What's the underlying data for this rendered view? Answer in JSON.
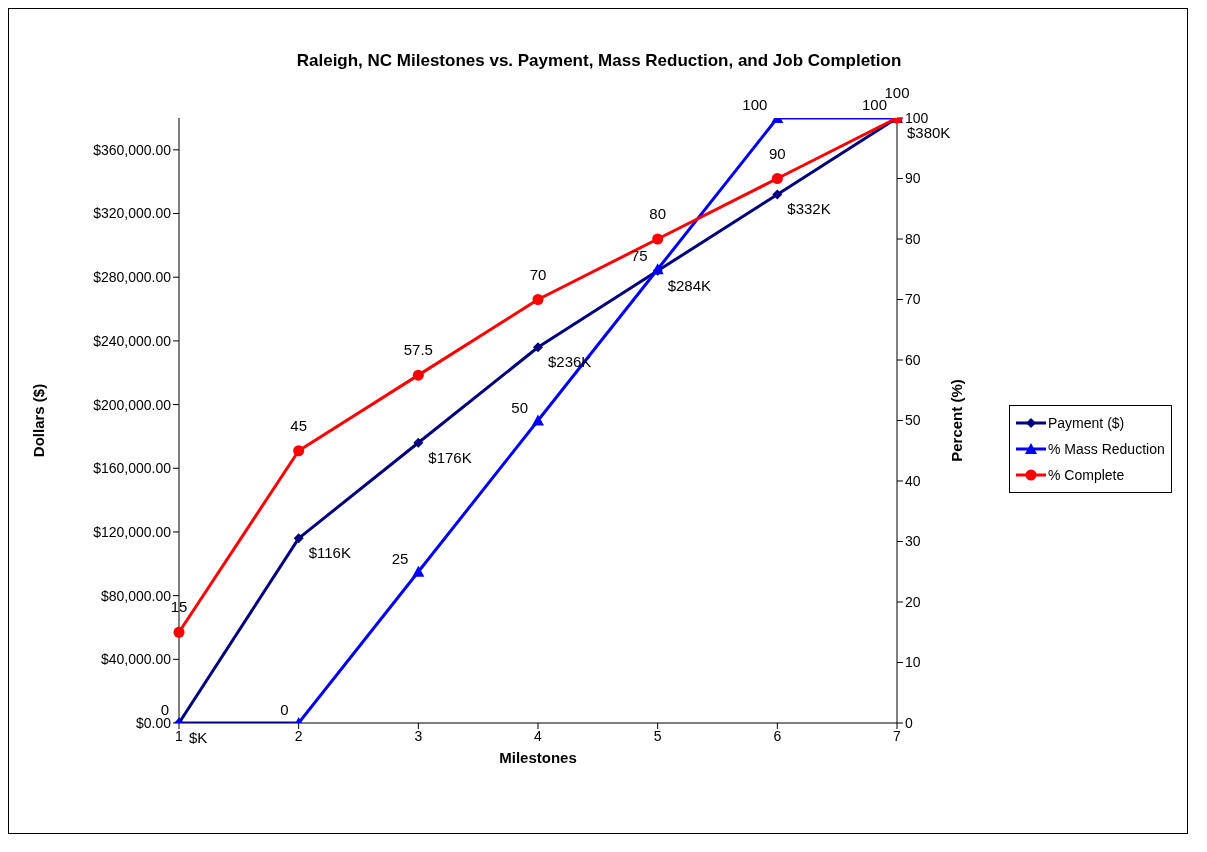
{
  "chart_data": {
    "type": "line",
    "title": "Raleigh, NC Milestones vs. Payment, Mass Reduction, and Job Completion",
    "xlabel": "Milestones",
    "ylabel": "Dollars ($)",
    "y2label": "Percent (%)",
    "categories": [
      "1",
      "2",
      "3",
      "4",
      "5",
      "6",
      "7"
    ],
    "series": [
      {
        "name": "Payment ($)",
        "color": "#000080",
        "marker": "diamond",
        "values": [
          0,
          116000,
          176000,
          236000,
          284000,
          332000,
          380000
        ],
        "value_labels": [
          "$K",
          "$116K",
          "$176K",
          "$236K",
          "$284K",
          "$332K",
          "$380K"
        ]
      },
      {
        "name": "% Mass Reduction",
        "color": "#0000ff",
        "marker": "triangle",
        "axis": "y2",
        "values": [
          0,
          0,
          25,
          50,
          75,
          100,
          100
        ],
        "value_labels": [
          "0",
          "0",
          "25",
          "50",
          "75",
          "100",
          "100"
        ]
      },
      {
        "name": "% Complete",
        "color": "#ff0000",
        "marker": "circle",
        "axis": "y2",
        "values": [
          15,
          45,
          57.5,
          70,
          80,
          90,
          100
        ],
        "value_labels": [
          "15",
          "45",
          "57.5",
          "70",
          "80",
          "90",
          "100"
        ]
      }
    ],
    "ylim": [
      0,
      380000
    ],
    "yticks": [
      {
        "value": 0,
        "label": "$0.00"
      },
      {
        "value": 40000,
        "label": "$40,000.00"
      },
      {
        "value": 80000,
        "label": "$80,000.00"
      },
      {
        "value": 120000,
        "label": "$120,000.00"
      },
      {
        "value": 160000,
        "label": "$160,000.00"
      },
      {
        "value": 200000,
        "label": "$200,000.00"
      },
      {
        "value": 240000,
        "label": "$240,000.00"
      },
      {
        "value": 280000,
        "label": "$280,000.00"
      },
      {
        "value": 320000,
        "label": "$320,000.00"
      },
      {
        "value": 360000,
        "label": "$360,000.00"
      }
    ],
    "y2lim": [
      0,
      100
    ],
    "y2ticks": [
      0,
      10,
      20,
      30,
      40,
      50,
      60,
      70,
      80,
      90,
      100
    ],
    "grid": false,
    "legend": "right",
    "line_style": "solid"
  }
}
